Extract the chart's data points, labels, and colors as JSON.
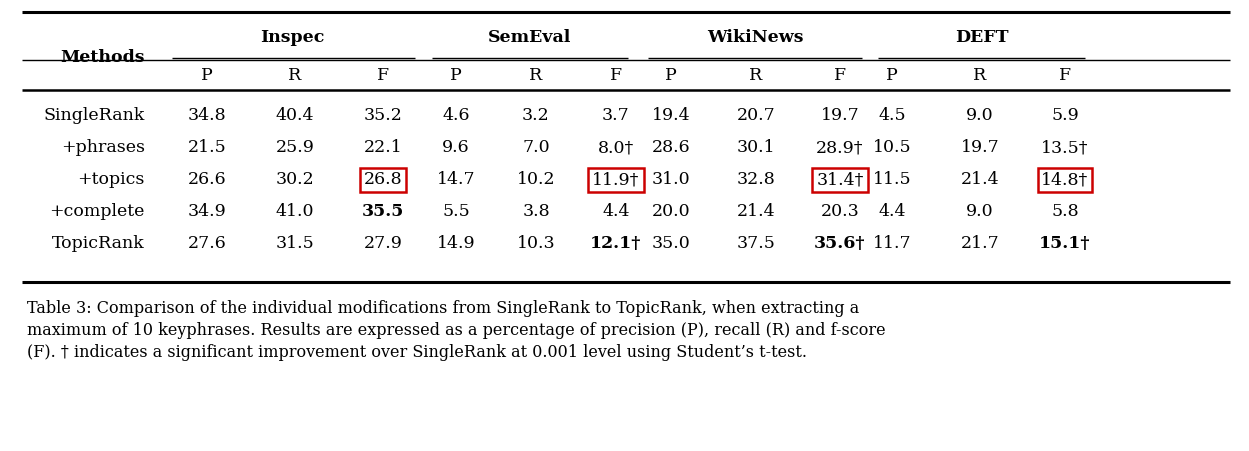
{
  "title_line1": "Table 3: Comparison of the individual modifications from SingleRank to TopicRank, when extracting a",
  "title_line2": "maximum of 10 keyphrases. Results are expressed as a percentage of precision (P), recall (R) and f-score",
  "title_line3": "(F). † indicates a significant improvement over SingleRank at 0.001 level using Student’s t-test.",
  "group_headers": [
    "Inspec",
    "SemEval",
    "WikiNews",
    "DEFT"
  ],
  "col_headers": [
    "P",
    "R",
    "F"
  ],
  "row_labels": [
    "SingleRank",
    "+phrases",
    "+topics",
    "+complete",
    "TopicRank"
  ],
  "data": {
    "SingleRank": {
      "Inspec": [
        "34.8",
        "40.4",
        "35.2"
      ],
      "SemEval": [
        "4.6",
        "3.2",
        "3.7"
      ],
      "WikiNews": [
        "19.4",
        "20.7",
        "19.7"
      ],
      "DEFT": [
        "4.5",
        "9.0",
        "5.9"
      ]
    },
    "+phrases": {
      "Inspec": [
        "21.5",
        "25.9",
        "22.1"
      ],
      "SemEval": [
        "9.6",
        "7.0",
        "8.0†"
      ],
      "WikiNews": [
        "28.6",
        "30.1",
        "28.9†"
      ],
      "DEFT": [
        "10.5",
        "19.7",
        "13.5†"
      ]
    },
    "+topics": {
      "Inspec": [
        "26.6",
        "30.2",
        "26.8"
      ],
      "SemEval": [
        "14.7",
        "10.2",
        "11.9†"
      ],
      "WikiNews": [
        "31.0",
        "32.8",
        "31.4†"
      ],
      "DEFT": [
        "11.5",
        "21.4",
        "14.8†"
      ]
    },
    "+complete": {
      "Inspec": [
        "34.9",
        "41.0",
        "35.5"
      ],
      "SemEval": [
        "5.5",
        "3.8",
        "4.4"
      ],
      "WikiNews": [
        "20.0",
        "21.4",
        "20.3"
      ],
      "DEFT": [
        "4.4",
        "9.0",
        "5.8"
      ]
    },
    "TopicRank": {
      "Inspec": [
        "27.6",
        "31.5",
        "27.9"
      ],
      "SemEval": [
        "14.9",
        "10.3",
        "12.1†"
      ],
      "WikiNews": [
        "35.0",
        "37.5",
        "35.6†"
      ],
      "DEFT": [
        "11.7",
        "21.7",
        "15.1†"
      ]
    }
  },
  "bold_values": {
    "+complete_Inspec_F": true,
    "TopicRank_SemEval_F": true,
    "TopicRank_WikiNews_F": true,
    "TopicRank_DEFT_F": true
  },
  "boxed_row": "+topics",
  "boxed_col": "F",
  "background_color": "#ffffff",
  "text_color": "#000000",
  "box_color": "#cc0000",
  "font_size": 12.5,
  "caption_font_size": 11.5
}
